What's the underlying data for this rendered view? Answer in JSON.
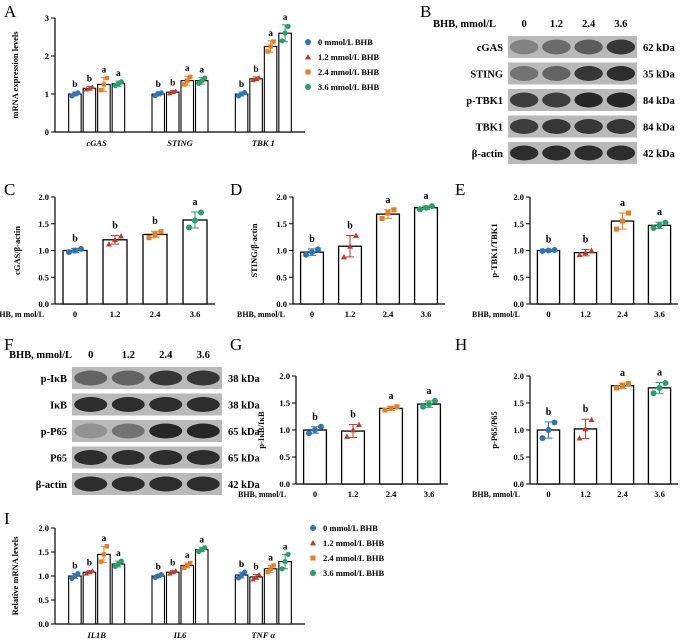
{
  "colors": {
    "dose0": "#2e75b6",
    "dose1": "#c0392b",
    "dose2": "#e67e22",
    "dose3": "#27a069",
    "blot_band": "#1e1e1e",
    "blot_bg": "#b9b9b9"
  },
  "legend": {
    "items": [
      "0 mmol/L BHB",
      "1.2 mmol/L BHB",
      "2.4 mmol/L BHB",
      "3.6 mmol/L BHB"
    ],
    "markers": [
      "circle",
      "triangle",
      "square",
      "circle"
    ]
  },
  "blots": {
    "B": {
      "letter": "B",
      "header": "BHB, mmol/L",
      "doses": [
        "0",
        "1.2",
        "2.4",
        "3.6"
      ],
      "rows": [
        {
          "protein": "cGAS",
          "size": "62 kDa",
          "intensity": [
            0.35,
            0.5,
            0.6,
            0.85
          ]
        },
        {
          "protein": "STING",
          "size": "35 kDa",
          "intensity": [
            0.45,
            0.55,
            0.85,
            0.9
          ]
        },
        {
          "protein": "p-TBK1",
          "size": "84 kDa",
          "intensity": [
            0.8,
            0.8,
            0.95,
            0.95
          ]
        },
        {
          "protein": "TBK1",
          "size": "84 kDa",
          "intensity": [
            0.8,
            0.85,
            0.85,
            0.85
          ]
        },
        {
          "protein": "β-actin",
          "size": "42 kDa",
          "intensity": [
            0.9,
            0.9,
            0.9,
            0.9
          ]
        }
      ]
    },
    "F": {
      "letter": "F",
      "header": "BHB, mmol/L",
      "doses": [
        "0",
        "1.2",
        "2.4",
        "3.6"
      ],
      "rows": [
        {
          "protein": "p-IκB",
          "size": "38 kDa",
          "intensity": [
            0.55,
            0.55,
            0.85,
            0.85
          ]
        },
        {
          "protein": "IκB",
          "size": "38 kDa",
          "intensity": [
            0.9,
            0.9,
            0.9,
            0.9
          ]
        },
        {
          "protein": "p-P65",
          "size": "65 kDa",
          "intensity": [
            0.25,
            0.45,
            0.95,
            0.95
          ]
        },
        {
          "protein": "P65",
          "size": "65 kDa",
          "intensity": [
            0.9,
            0.9,
            0.9,
            0.9
          ]
        },
        {
          "protein": "β-actin",
          "size": "42 kDa",
          "intensity": [
            0.9,
            0.9,
            0.9,
            0.9
          ]
        }
      ]
    }
  },
  "chart_data": [
    {
      "id": "A",
      "letter": "A",
      "type": "bar",
      "ylabel": "mRNA expression levels",
      "ylim": [
        0,
        3
      ],
      "yticks": [
        "0",
        "1",
        "2",
        "3"
      ],
      "categories": [
        "cGAS",
        "STING",
        "TBK 1"
      ],
      "series": [
        {
          "name": "0 mmol/L BHB",
          "values": [
            1.0,
            1.0,
            1.0
          ],
          "errors": [
            0.05,
            0.05,
            0.05
          ],
          "labels": [
            "b",
            "b",
            "b"
          ],
          "points": [
            [
              0.95,
              1.0,
              1.03
            ],
            [
              0.96,
              1.01,
              1.03
            ],
            [
              0.95,
              1.0,
              1.04
            ]
          ]
        },
        {
          "name": "1.2 mmol/L BHB",
          "values": [
            1.15,
            1.05,
            1.4
          ],
          "errors": [
            0.05,
            0.04,
            0.05
          ],
          "labels": [
            "b",
            "b",
            "b"
          ],
          "points": [
            [
              1.12,
              1.15,
              1.18
            ],
            [
              1.02,
              1.05,
              1.08
            ],
            [
              1.37,
              1.4,
              1.43
            ]
          ]
        },
        {
          "name": "2.4 mmol/L BHB",
          "values": [
            1.25,
            1.35,
            2.25
          ],
          "errors": [
            0.18,
            0.12,
            0.15
          ],
          "labels": [
            "a",
            "a",
            "a"
          ],
          "points": [
            [
              1.1,
              1.25,
              1.42
            ],
            [
              1.25,
              1.35,
              1.45
            ],
            [
              2.12,
              2.25,
              2.38
            ]
          ]
        },
        {
          "name": "3.6 mmol/L BHB",
          "values": [
            1.27,
            1.35,
            2.6
          ],
          "errors": [
            0.07,
            0.09,
            0.22
          ],
          "labels": [
            "a",
            "a",
            "a"
          ],
          "points": [
            [
              1.22,
              1.27,
              1.32
            ],
            [
              1.28,
              1.35,
              1.42
            ],
            [
              2.4,
              2.6,
              2.78
            ]
          ]
        }
      ]
    },
    {
      "id": "C",
      "letter": "C",
      "type": "bar",
      "ylabel": "cGAS/β-actin",
      "xlabel": "BHB, m mol/L",
      "ylim": [
        0,
        2
      ],
      "yticks": [
        "0.0",
        "0.5",
        "1.0",
        "1.5",
        "2.0"
      ],
      "categories": [
        "0",
        "1.2",
        "2.4",
        "3.6"
      ],
      "values": [
        1.0,
        1.2,
        1.3,
        1.57
      ],
      "errors": [
        0.04,
        0.08,
        0.06,
        0.15
      ],
      "labels": [
        "b",
        "b",
        "b",
        "a"
      ],
      "points": [
        [
          0.97,
          1.0,
          1.03
        ],
        [
          1.12,
          1.2,
          1.27
        ],
        [
          1.24,
          1.3,
          1.35
        ],
        [
          1.43,
          1.56,
          1.71
        ]
      ]
    },
    {
      "id": "D",
      "letter": "D",
      "type": "bar",
      "ylabel": "STING/β-actin",
      "xlabel": "BHB, mmol/L",
      "ylim": [
        0,
        2
      ],
      "yticks": [
        "0.0",
        "0.5",
        "1.0",
        "1.5",
        "2.0"
      ],
      "categories": [
        "0",
        "1.2",
        "2.4",
        "3.6"
      ],
      "values": [
        0.97,
        1.08,
        1.68,
        1.8
      ],
      "errors": [
        0.06,
        0.2,
        0.08,
        0.03
      ],
      "labels": [
        "b",
        "b",
        "a",
        "a"
      ],
      "points": [
        [
          0.92,
          0.97,
          1.02
        ],
        [
          0.88,
          1.08,
          1.28
        ],
        [
          1.6,
          1.7,
          1.76
        ],
        [
          1.77,
          1.8,
          1.83
        ]
      ]
    },
    {
      "id": "E",
      "letter": "E",
      "type": "bar",
      "ylabel": "p-TBK1/TBK1",
      "xlabel": "BHB, mmol/L",
      "ylim": [
        0,
        2
      ],
      "yticks": [
        "0.0",
        "0.5",
        "1.0",
        "1.5",
        "2.0"
      ],
      "categories": [
        "0",
        "1.2",
        "2.4",
        "3.6"
      ],
      "values": [
        1.0,
        0.96,
        1.55,
        1.47
      ],
      "errors": [
        0.02,
        0.06,
        0.15,
        0.06
      ],
      "labels": [
        "b",
        "b",
        "a",
        "a"
      ],
      "points": [
        [
          0.99,
          1.0,
          1.01
        ],
        [
          0.92,
          0.96,
          1.0
        ],
        [
          1.4,
          1.55,
          1.7
        ],
        [
          1.42,
          1.47,
          1.52
        ]
      ]
    },
    {
      "id": "G",
      "letter": "G",
      "type": "bar",
      "ylabel": "p-IκB/IκB",
      "xlabel": "BHB, mmol/L",
      "ylim": [
        0,
        2
      ],
      "yticks": [
        "0.0",
        "0.5",
        "1.0",
        "1.5",
        "2.0"
      ],
      "categories": [
        "0",
        "1.2",
        "2.4",
        "3.6"
      ],
      "values": [
        1.0,
        0.98,
        1.4,
        1.48
      ],
      "errors": [
        0.06,
        0.12,
        0.04,
        0.06
      ],
      "labels": [
        "b",
        "b",
        "a",
        "a"
      ],
      "points": [
        [
          0.94,
          1.0,
          1.06
        ],
        [
          0.88,
          1.0,
          1.1
        ],
        [
          1.37,
          1.4,
          1.43
        ],
        [
          1.43,
          1.48,
          1.54
        ]
      ]
    },
    {
      "id": "H",
      "letter": "H",
      "type": "bar",
      "ylabel": "p-P65/P65",
      "xlabel": "BHB, mmol/L",
      "ylim": [
        0,
        2
      ],
      "yticks": [
        "0.0",
        "0.5",
        "1.0",
        "1.5",
        "2.0"
      ],
      "categories": [
        "0",
        "1.2",
        "2.4",
        "3.6"
      ],
      "values": [
        1.0,
        1.02,
        1.82,
        1.78
      ],
      "errors": [
        0.15,
        0.18,
        0.05,
        0.1
      ],
      "labels": [
        "b",
        "b",
        "a",
        "a"
      ],
      "points": [
        [
          0.85,
          1.0,
          1.14
        ],
        [
          0.85,
          1.02,
          1.19
        ],
        [
          1.78,
          1.82,
          1.86
        ],
        [
          1.68,
          1.78,
          1.87
        ]
      ]
    },
    {
      "id": "I",
      "letter": "I",
      "type": "bar",
      "ylabel": "Relative mRNA levels",
      "ylim": [
        0,
        2
      ],
      "yticks": [
        "0.0",
        "0.5",
        "1.0",
        "1.5",
        "2.0"
      ],
      "categories": [
        "IL1B",
        "IL6",
        "TNF α"
      ],
      "series": [
        {
          "name": "0 mmol/L BHB",
          "values": [
            1.0,
            1.0,
            1.02
          ],
          "errors": [
            0.05,
            0.03,
            0.06
          ],
          "labels": [
            "b",
            "b",
            "b"
          ],
          "points": [
            [
              0.95,
              1.0,
              1.05
            ],
            [
              0.97,
              1.0,
              1.03
            ],
            [
              0.96,
              1.02,
              1.08
            ]
          ]
        },
        {
          "name": "1.2 mmol/L BHB",
          "values": [
            1.08,
            1.08,
            0.98
          ],
          "errors": [
            0.03,
            0.03,
            0.05
          ],
          "labels": [
            "b",
            "b",
            "b"
          ],
          "points": [
            [
              1.05,
              1.08,
              1.11
            ],
            [
              1.05,
              1.08,
              1.11
            ],
            [
              0.93,
              0.98,
              1.03
            ]
          ]
        },
        {
          "name": "2.4 mmol/L BHB",
          "values": [
            1.45,
            1.22,
            1.15
          ],
          "errors": [
            0.17,
            0.05,
            0.07
          ],
          "labels": [
            "a",
            "a",
            "a"
          ],
          "points": [
            [
              1.3,
              1.45,
              1.62
            ],
            [
              1.17,
              1.22,
              1.27
            ],
            [
              1.08,
              1.15,
              1.22
            ]
          ]
        },
        {
          "name": "3.6 mmol/L BHB",
          "values": [
            1.25,
            1.55,
            1.3
          ],
          "errors": [
            0.06,
            0.04,
            0.15
          ],
          "labels": [
            "a",
            "a",
            "a"
          ],
          "points": [
            [
              1.2,
              1.25,
              1.31
            ],
            [
              1.51,
              1.55,
              1.59
            ],
            [
              1.15,
              1.3,
              1.45
            ]
          ]
        }
      ]
    }
  ]
}
